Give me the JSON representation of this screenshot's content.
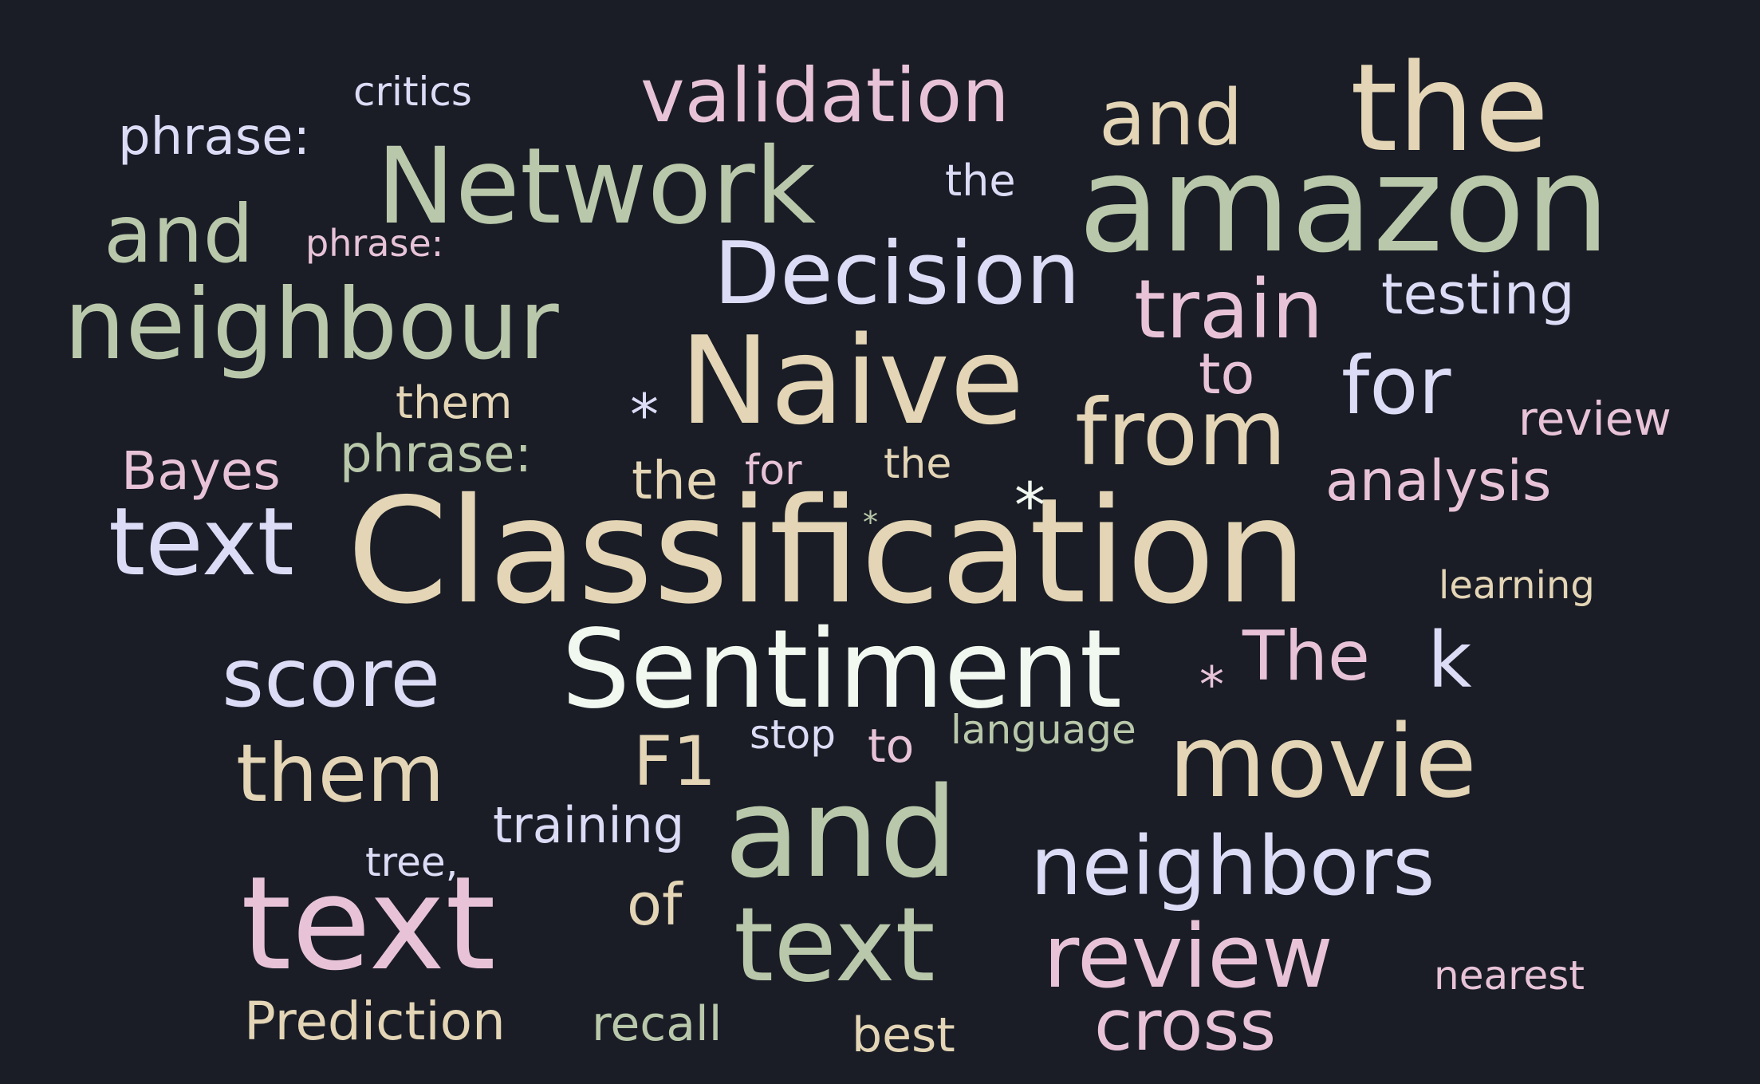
{
  "background": "#1a1d26",
  "palette": {
    "sage": "#b9c8aa",
    "cream": "#e3d5b5",
    "pink": "#e8c3d8",
    "lavender": "#dcdcf6",
    "white": "#f1f8ef"
  },
  "words": [
    {
      "text": "critics",
      "color": "lavender"
    },
    {
      "text": "validation",
      "color": "pink"
    },
    {
      "text": "and",
      "color": "cream"
    },
    {
      "text": "the",
      "color": "cream"
    },
    {
      "text": "phrase:",
      "color": "lavender"
    },
    {
      "text": "Network",
      "color": "sage"
    },
    {
      "text": "the",
      "color": "lavender"
    },
    {
      "text": "amazon",
      "color": "sage"
    },
    {
      "text": "and",
      "color": "sage"
    },
    {
      "text": "phrase:",
      "color": "pink"
    },
    {
      "text": "Decision",
      "color": "lavender"
    },
    {
      "text": "train",
      "color": "pink"
    },
    {
      "text": "testing",
      "color": "lavender"
    },
    {
      "text": "neighbour",
      "color": "sage"
    },
    {
      "text": "Naive",
      "color": "cream"
    },
    {
      "text": "to",
      "color": "pink"
    },
    {
      "text": "for",
      "color": "lavender"
    },
    {
      "text": "them",
      "color": "cream"
    },
    {
      "text": "from",
      "color": "cream"
    },
    {
      "text": "review",
      "color": "pink"
    },
    {
      "text": "phrase:",
      "color": "sage"
    },
    {
      "text": "Bayes",
      "color": "pink"
    },
    {
      "text": "the",
      "color": "cream"
    },
    {
      "text": "for",
      "color": "pink"
    },
    {
      "text": "the",
      "color": "cream"
    },
    {
      "text": "analysis",
      "color": "pink"
    },
    {
      "text": "text",
      "color": "lavender"
    },
    {
      "text": "Classification",
      "color": "cream"
    },
    {
      "text": "learning",
      "color": "cream"
    },
    {
      "text": "score",
      "color": "lavender"
    },
    {
      "text": "Sentiment",
      "color": "white"
    },
    {
      "text": "The",
      "color": "pink"
    },
    {
      "text": "k",
      "color": "lavender"
    },
    {
      "text": "F1",
      "color": "cream"
    },
    {
      "text": "stop",
      "color": "lavender"
    },
    {
      "text": "to",
      "color": "pink"
    },
    {
      "text": "language",
      "color": "sage"
    },
    {
      "text": "them",
      "color": "cream"
    },
    {
      "text": "movie",
      "color": "cream"
    },
    {
      "text": "training",
      "color": "lavender"
    },
    {
      "text": "and",
      "color": "sage"
    },
    {
      "text": "tree,",
      "color": "lavender"
    },
    {
      "text": "neighbors",
      "color": "lavender"
    },
    {
      "text": "text",
      "color": "pink"
    },
    {
      "text": "of",
      "color": "cream"
    },
    {
      "text": "text",
      "color": "sage"
    },
    {
      "text": "review",
      "color": "pink"
    },
    {
      "text": "nearest",
      "color": "pink"
    },
    {
      "text": "Prediction",
      "color": "cream"
    },
    {
      "text": "recall",
      "color": "sage"
    },
    {
      "text": "best",
      "color": "cream"
    },
    {
      "text": "cross",
      "color": "pink"
    }
  ],
  "stars": [
    {
      "text": "*",
      "color": "lavender"
    },
    {
      "text": "*",
      "color": "white"
    },
    {
      "text": "*",
      "color": "sage"
    },
    {
      "text": "*",
      "color": "pink"
    }
  ]
}
